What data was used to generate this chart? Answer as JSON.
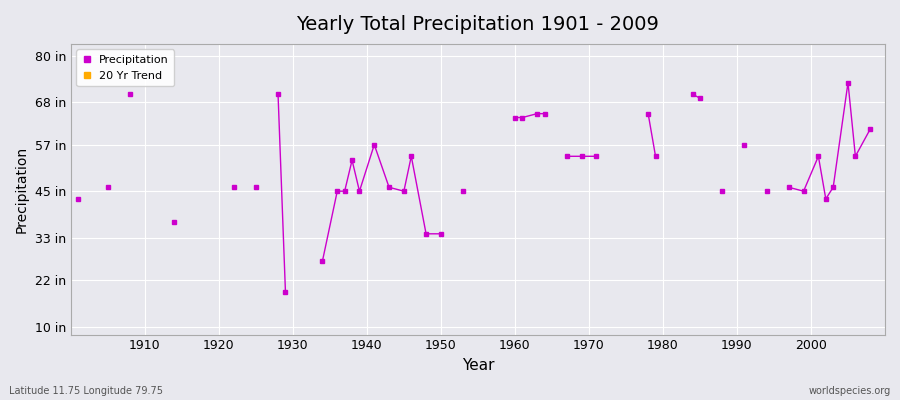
{
  "title": "Yearly Total Precipitation 1901 - 2009",
  "xlabel": "Year",
  "ylabel": "Precipitation",
  "lat_lon_label": "Latitude 11.75 Longitude 79.75",
  "source_label": "worldspecies.org",
  "yticks": [
    10,
    22,
    33,
    45,
    57,
    68,
    80
  ],
  "ytick_labels": [
    "10 in",
    "22 in",
    "33 in",
    "45 in",
    "57 in",
    "68 in",
    "80 in"
  ],
  "xlim": [
    1900,
    2010
  ],
  "ylim": [
    8,
    83
  ],
  "background_color": "#e8e8ee",
  "plot_bg_color": "#e8e8ee",
  "grid_color": "#ffffff",
  "line_color": "#cc00cc",
  "marker_color": "#cc00cc",
  "trend_color": "#ffaa00",
  "data_years": [
    1901,
    1905,
    1908,
    1914,
    1922,
    1925,
    1928,
    1929,
    1934,
    1936,
    1937,
    1938,
    1939,
    1941,
    1943,
    1945,
    1946,
    1948,
    1950,
    1953,
    1960,
    1961,
    1963,
    1964,
    1967,
    1969,
    1971,
    1978,
    1979,
    1984,
    1985,
    1988,
    1991,
    1994,
    1997,
    1999,
    2001,
    2002,
    2003,
    2005,
    2006,
    2008
  ],
  "data_precip": [
    43,
    46,
    70,
    37,
    46,
    46,
    70,
    19,
    27,
    45,
    45,
    53,
    45,
    57,
    46,
    45,
    54,
    34,
    34,
    45,
    64,
    64,
    65,
    65,
    54,
    54,
    54,
    65,
    54,
    70,
    69,
    45,
    57,
    45,
    46,
    45,
    54,
    43,
    46,
    73,
    54,
    61
  ],
  "xticks": [
    1910,
    1920,
    1930,
    1940,
    1950,
    1960,
    1970,
    1980,
    1990,
    2000
  ],
  "xtick_labels": [
    "1910",
    "1920",
    "1930",
    "1940",
    "1950",
    "1960",
    "1970",
    "1980",
    "1990",
    "2000"
  ]
}
